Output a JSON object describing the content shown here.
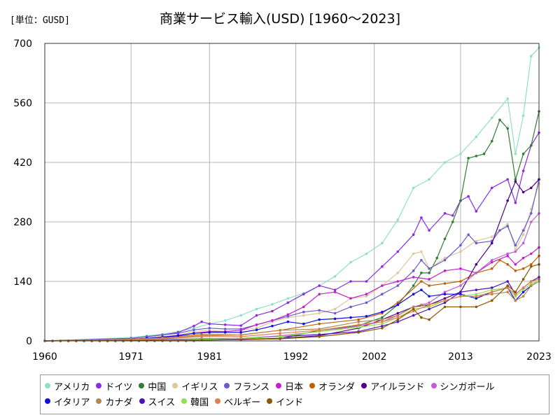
{
  "unit_label": "[単位：GUSD]",
  "chart_data": {
    "type": "line",
    "title": "商業サービス輸入(USD) [1960～2023]",
    "xlabel": "",
    "ylabel": "",
    "x_ticks": [
      1960,
      1971,
      1981,
      1992,
      2002,
      2013,
      2023
    ],
    "y_ticks": [
      0,
      140,
      280,
      420,
      560,
      700
    ],
    "xlim": [
      1960,
      2023
    ],
    "ylim": [
      0,
      700
    ],
    "grid": true,
    "legend_position": "bottom",
    "series": [
      {
        "name": "アメリカ",
        "color": "#8fe0c8",
        "x": [
          1971,
          1973,
          1975,
          1977,
          1979,
          1981,
          1983,
          1985,
          1987,
          1989,
          1991,
          1993,
          1995,
          1997,
          1999,
          2001,
          2003,
          2005,
          2007,
          2009,
          2011,
          2013,
          2015,
          2017,
          2019,
          2020,
          2021,
          2022,
          2023
        ],
        "y": [
          8,
          12,
          16,
          22,
          30,
          40,
          48,
          60,
          75,
          86,
          100,
          112,
          130,
          152,
          185,
          205,
          230,
          285,
          360,
          380,
          420,
          440,
          480,
          525,
          570,
          440,
          530,
          670,
          690
        ]
      },
      {
        "name": "ドイツ",
        "color": "#8a2be2",
        "x": [
          1971,
          1973,
          1975,
          1977,
          1979,
          1980,
          1981,
          1983,
          1985,
          1987,
          1989,
          1991,
          1993,
          1995,
          1997,
          1999,
          2001,
          2003,
          2005,
          2007,
          2008,
          2009,
          2011,
          2012,
          2013,
          2014,
          2015,
          2017,
          2019,
          2020,
          2021,
          2022,
          2023
        ],
        "y": [
          5,
          10,
          14,
          20,
          35,
          45,
          40,
          38,
          36,
          60,
          70,
          90,
          110,
          130,
          120,
          140,
          140,
          175,
          210,
          250,
          290,
          260,
          300,
          295,
          330,
          340,
          305,
          360,
          380,
          325,
          400,
          460,
          490
        ]
      },
      {
        "name": "中国",
        "color": "#2e7d32",
        "x": [
          1980,
          1985,
          1990,
          1995,
          2000,
          2003,
          2005,
          2007,
          2008,
          2009,
          2010,
          2011,
          2012,
          2013,
          2014,
          2015,
          2016,
          2017,
          2018,
          2019,
          2020,
          2021,
          2022,
          2023
        ],
        "y": [
          2,
          3,
          5,
          25,
          36,
          55,
          85,
          130,
          160,
          160,
          195,
          240,
          280,
          330,
          430,
          435,
          440,
          470,
          520,
          500,
          380,
          440,
          460,
          540
        ]
      },
      {
        "name": "イギリス",
        "color": "#dcc89a",
        "x": [
          1971,
          1973,
          1975,
          1977,
          1979,
          1981,
          1983,
          1985,
          1987,
          1989,
          1991,
          1993,
          1995,
          1997,
          1999,
          2001,
          2003,
          2005,
          2007,
          2008,
          2009,
          2011,
          2013,
          2015,
          2017,
          2019,
          2020,
          2021,
          2022,
          2023
        ],
        "y": [
          6,
          8,
          10,
          14,
          22,
          25,
          22,
          25,
          30,
          45,
          55,
          60,
          65,
          75,
          100,
          105,
          130,
          160,
          205,
          210,
          170,
          195,
          210,
          235,
          245,
          275,
          215,
          250,
          310,
          370
        ]
      },
      {
        "name": "フランス",
        "color": "#6a5acd",
        "x": [
          1971,
          1973,
          1975,
          1977,
          1979,
          1981,
          1983,
          1985,
          1987,
          1989,
          1991,
          1993,
          1995,
          1997,
          1999,
          2001,
          2003,
          2005,
          2007,
          2008,
          2009,
          2011,
          2013,
          2014,
          2015,
          2017,
          2018,
          2019,
          2020,
          2021,
          2022,
          2023
        ],
        "y": [
          6,
          10,
          14,
          18,
          26,
          30,
          28,
          28,
          38,
          48,
          58,
          68,
          72,
          65,
          80,
          90,
          110,
          130,
          165,
          190,
          170,
          190,
          225,
          250,
          230,
          235,
          260,
          270,
          225,
          260,
          300,
          380
        ]
      },
      {
        "name": "日本",
        "color": "#c020d0",
        "x": [
          1971,
          1973,
          1975,
          1977,
          1979,
          1981,
          1983,
          1985,
          1987,
          1989,
          1991,
          1993,
          1995,
          1997,
          1999,
          2001,
          2003,
          2005,
          2007,
          2009,
          2011,
          2013,
          2015,
          2017,
          2019,
          2020,
          2021,
          2022,
          2023
        ],
        "y": [
          4,
          6,
          9,
          13,
          18,
          22,
          22,
          25,
          38,
          48,
          62,
          80,
          110,
          115,
          100,
          110,
          130,
          140,
          150,
          145,
          165,
          170,
          160,
          185,
          200,
          180,
          195,
          205,
          220
        ]
      },
      {
        "name": "オランダ",
        "color": "#c06000",
        "x": [
          1971,
          1975,
          1980,
          1985,
          1990,
          1995,
          2000,
          2003,
          2005,
          2008,
          2009,
          2011,
          2013,
          2015,
          2017,
          2018,
          2019,
          2020,
          2021,
          2022,
          2023
        ],
        "y": [
          3,
          8,
          15,
          14,
          25,
          40,
          50,
          65,
          90,
          140,
          130,
          135,
          140,
          160,
          170,
          190,
          180,
          165,
          170,
          180,
          200
        ]
      },
      {
        "name": "アイルランド",
        "color": "#4b0082",
        "x": [
          1971,
          1975,
          1980,
          1985,
          1990,
          1995,
          2000,
          2003,
          2005,
          2007,
          2009,
          2011,
          2013,
          2015,
          2017,
          2019,
          2020,
          2021,
          2022,
          2023
        ],
        "y": [
          1,
          2,
          3,
          4,
          6,
          12,
          30,
          50,
          65,
          80,
          85,
          100,
          115,
          180,
          230,
          330,
          375,
          350,
          360,
          380
        ]
      },
      {
        "name": "シンガポール",
        "color": "#c060d0",
        "x": [
          1971,
          1975,
          1980,
          1985,
          1990,
          1995,
          2000,
          2003,
          2005,
          2007,
          2009,
          2011,
          2013,
          2015,
          2017,
          2019,
          2020,
          2021,
          2022,
          2023
        ],
        "y": [
          1,
          2,
          4,
          6,
          12,
          22,
          35,
          45,
          60,
          80,
          90,
          115,
          130,
          160,
          190,
          205,
          210,
          230,
          280,
          300
        ]
      },
      {
        "name": "イタリア",
        "color": "#1010e0",
        "x": [
          1971,
          1973,
          1975,
          1977,
          1979,
          1981,
          1983,
          1985,
          1987,
          1989,
          1991,
          1993,
          1995,
          1997,
          1999,
          2001,
          2003,
          2005,
          2007,
          2008,
          2009,
          2011,
          2013,
          2015,
          2017,
          2019,
          2020,
          2021,
          2022,
          2023
        ],
        "y": [
          4,
          6,
          9,
          12,
          18,
          20,
          20,
          20,
          26,
          35,
          45,
          40,
          50,
          52,
          55,
          58,
          68,
          85,
          110,
          120,
          105,
          110,
          110,
          100,
          115,
          125,
          95,
          115,
          130,
          140
        ]
      },
      {
        "name": "カナダ",
        "color": "#b8864b",
        "x": [
          1971,
          1975,
          1980,
          1985,
          1990,
          1995,
          2000,
          2003,
          2005,
          2007,
          2008,
          2009,
          2011,
          2013,
          2015,
          2017,
          2019,
          2020,
          2021,
          2022,
          2023
        ],
        "y": [
          4,
          7,
          12,
          14,
          25,
          28,
          45,
          50,
          60,
          80,
          85,
          80,
          95,
          105,
          105,
          110,
          115,
          95,
          105,
          130,
          140
        ]
      },
      {
        "name": "スイス",
        "color": "#5010c0",
        "x": [
          1971,
          1975,
          1980,
          1985,
          1990,
          1995,
          2000,
          2003,
          2005,
          2007,
          2009,
          2011,
          2013,
          2015,
          2017,
          2019,
          2020,
          2021,
          2022,
          2023
        ],
        "y": [
          2,
          3,
          5,
          6,
          10,
          15,
          22,
          35,
          45,
          60,
          75,
          90,
          115,
          120,
          125,
          140,
          110,
          125,
          140,
          150
        ]
      },
      {
        "name": "韓国",
        "color": "#90e050",
        "x": [
          1971,
          1975,
          1980,
          1985,
          1990,
          1995,
          2000,
          2003,
          2005,
          2007,
          2009,
          2011,
          2013,
          2015,
          2017,
          2019,
          2020,
          2021,
          2022,
          2023
        ],
        "y": [
          1,
          2,
          4,
          6,
          10,
          22,
          32,
          40,
          55,
          75,
          80,
          95,
          105,
          110,
          120,
          125,
          105,
          120,
          135,
          140
        ]
      },
      {
        "name": "ベルギー",
        "color": "#e08050",
        "x": [
          1971,
          1975,
          1980,
          1985,
          1990,
          1995,
          2000,
          2003,
          2005,
          2007,
          2009,
          2011,
          2013,
          2015,
          2017,
          2019,
          2020,
          2021,
          2022,
          2023
        ],
        "y": [
          3,
          5,
          10,
          10,
          18,
          25,
          38,
          45,
          55,
          70,
          85,
          95,
          105,
          105,
          115,
          125,
          110,
          125,
          140,
          145
        ]
      },
      {
        "name": "インド",
        "color": "#8b5a00",
        "x": [
          1971,
          1975,
          1980,
          1985,
          1990,
          1995,
          2000,
          2003,
          2005,
          2007,
          2008,
          2009,
          2011,
          2013,
          2015,
          2017,
          2019,
          2020,
          2021,
          2022,
          2023
        ],
        "y": [
          1,
          1,
          2,
          3,
          5,
          10,
          20,
          30,
          50,
          75,
          55,
          50,
          80,
          80,
          80,
          95,
          130,
          115,
          145,
          175,
          180
        ]
      }
    ]
  }
}
